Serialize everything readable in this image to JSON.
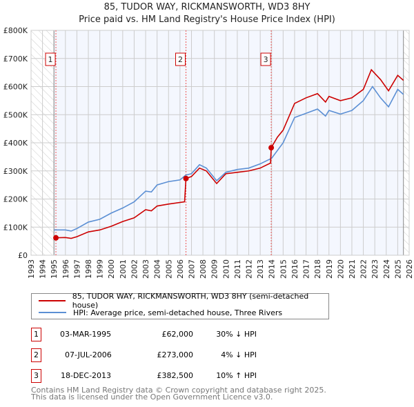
{
  "chart_data": {
    "type": "line",
    "title": "85, TUDOR WAY, RICKMANSWORTH, WD3 8HY",
    "subtitle": "Price paid vs. HM Land Registry's House Price Index (HPI)",
    "xlim": [
      1993,
      2026
    ],
    "ylim": [
      0,
      800000
    ],
    "y_ticks": [
      "£0",
      "£100K",
      "£200K",
      "£300K",
      "£400K",
      "£500K",
      "£600K",
      "£700K",
      "£800K"
    ],
    "x_ticks": [
      "1993",
      "1994",
      "1995",
      "1996",
      "1997",
      "1998",
      "1999",
      "2000",
      "2001",
      "2002",
      "2003",
      "2004",
      "2005",
      "2006",
      "2007",
      "2008",
      "2009",
      "2010",
      "2011",
      "2012",
      "2013",
      "2014",
      "2015",
      "2016",
      "2017",
      "2018",
      "2019",
      "2020",
      "2021",
      "2022",
      "2023",
      "2024",
      "2025",
      "2026"
    ],
    "data_range": [
      1995.0,
      2025.5
    ],
    "series": [
      {
        "name": "85, TUDOR WAY, RICKMANSWORTH, WD3 8HY (semi-detached house)",
        "color": "#cc0000",
        "x": [
          1995.17,
          1996,
          1996.5,
          1997,
          1998,
          1999,
          2000,
          2001,
          2002,
          2003,
          2003.5,
          2004,
          2005,
          2006.4,
          2006.52,
          2007,
          2007.7,
          2008.3,
          2009.2,
          2010,
          2011,
          2012,
          2013,
          2013.9,
          2013.96,
          2014.5,
          2015,
          2016,
          2017,
          2018,
          2018.7,
          2019,
          2020,
          2021,
          2022,
          2022.7,
          2023.5,
          2024.2,
          2025,
          2025.5
        ],
        "y": [
          62000,
          63000,
          60000,
          66000,
          83000,
          90000,
          103000,
          120000,
          133000,
          162000,
          158000,
          175000,
          182000,
          190000,
          273000,
          280000,
          310000,
          300000,
          255000,
          290000,
          295000,
          300000,
          310000,
          328000,
          382500,
          420000,
          445000,
          540000,
          560000,
          575000,
          545000,
          565000,
          550000,
          560000,
          590000,
          660000,
          625000,
          585000,
          640000,
          622000
        ]
      },
      {
        "name": "HPI: Average price, semi-detached house, Three Rivers",
        "color": "#5b8fd4",
        "x": [
          1995,
          1996,
          1996.5,
          1997,
          1998,
          1999,
          2000,
          2001,
          2002,
          2003,
          2003.5,
          2004,
          2005,
          2006,
          2006.5,
          2007,
          2007.7,
          2008.3,
          2009.2,
          2010,
          2011,
          2012,
          2013,
          2014,
          2015,
          2016,
          2017,
          2018,
          2018.7,
          2019,
          2020,
          2021,
          2022,
          2022.8,
          2023.5,
          2024.2,
          2025,
          2025.5
        ],
        "y": [
          90000,
          90000,
          86000,
          95000,
          118000,
          128000,
          150000,
          168000,
          190000,
          228000,
          225000,
          250000,
          262000,
          268000,
          285000,
          290000,
          322000,
          310000,
          265000,
          295000,
          305000,
          310000,
          325000,
          345000,
          400000,
          490000,
          505000,
          520000,
          495000,
          515000,
          502000,
          515000,
          550000,
          600000,
          560000,
          528000,
          590000,
          572000
        ]
      }
    ],
    "sales": [
      {
        "label": "1",
        "x": 1995.17,
        "y": 62000,
        "date": "03-MAR-1995",
        "price": "£62,000",
        "hpi": "30% ↓ HPI"
      },
      {
        "label": "2",
        "x": 2006.52,
        "y": 273000,
        "date": "07-JUL-2006",
        "price": "£273,000",
        "hpi": "4% ↓ HPI"
      },
      {
        "label": "3",
        "x": 2013.96,
        "y": 382500,
        "date": "18-DEC-2013",
        "price": "£382,500",
        "hpi": "10% ↑ HPI"
      }
    ]
  },
  "footer": {
    "line1": "Contains HM Land Registry data © Crown copyright and database right 2025.",
    "line2": "This data is licensed under the Open Government Licence v3.0."
  }
}
